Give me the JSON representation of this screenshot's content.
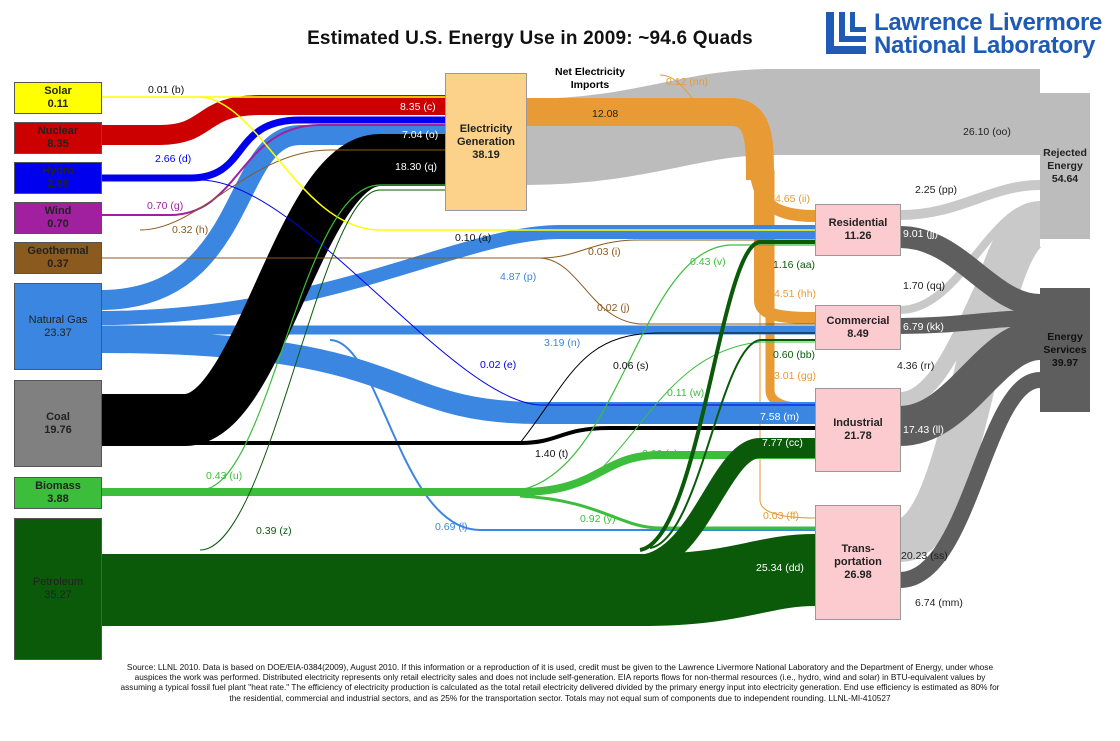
{
  "title": "Estimated U.S. Energy Use in 2009: ~94.6 Quads",
  "logo": {
    "line1": "Lawrence Livermore",
    "line2": "National Laboratory"
  },
  "colors": {
    "solar": "#ffff00",
    "nuclear": "#cc0000",
    "hydro": "#0000ee",
    "wind": "#a020a0",
    "geothermal": "#8b5a1e",
    "gas": "#3a86e0",
    "coal": "#000000",
    "biomass": "#3cbe3c",
    "petroleum": "#0a5a0a",
    "electricity": "#e89a35",
    "rejected": "#bcbcbc",
    "services": "#5e5e5e"
  },
  "sources": [
    {
      "id": "solar",
      "name": "Solar",
      "value": "0.11"
    },
    {
      "id": "nuclear",
      "name": "Nuclear",
      "value": "8.35"
    },
    {
      "id": "hydro",
      "name": "Hydro",
      "value": "2.68"
    },
    {
      "id": "wind",
      "name": "Wind",
      "value": "0.70"
    },
    {
      "id": "geothermal",
      "name": "Geothermal",
      "value": "0.37"
    },
    {
      "id": "gas",
      "name": "Natural Gas",
      "value": "23.37"
    },
    {
      "id": "coal",
      "name": "Coal",
      "value": "19.76"
    },
    {
      "id": "biomass",
      "name": "Biomass",
      "value": "3.88"
    },
    {
      "id": "petroleum",
      "name": "Petroleum",
      "value": "35.27"
    }
  ],
  "electricity": {
    "name": "Electricity Generation",
    "value": "38.19"
  },
  "net_imports": "Net Electricity Imports",
  "sectors": [
    {
      "id": "residential",
      "name": "Residential",
      "value": "11.26"
    },
    {
      "id": "commercial",
      "name": "Commercial",
      "value": "8.49"
    },
    {
      "id": "industrial",
      "name": "Industrial",
      "value": "21.78"
    },
    {
      "id": "transportation",
      "name": "Trans- portation",
      "value": "26.98"
    }
  ],
  "rejected": {
    "name": "Rejected Energy",
    "value": "54.64"
  },
  "services": {
    "name": "Energy Services",
    "value": "39.97"
  },
  "flows": {
    "b": "0.01 (b)",
    "c": "8.35 (c)",
    "o": "7.04 (o)",
    "q": "18.30 (q)",
    "d": "2.66 (d)",
    "g": "0.70 (g)",
    "h": "0.32 (h)",
    "a": "0.10 (a)",
    "i": "0.03 (i)",
    "j": "0.02 (j)",
    "p": "4.87 (p)",
    "n": "3.19 (n)",
    "e": "0.02 (e)",
    "s": "0.06 (s)",
    "t": "1.40 (t)",
    "u": "0.43 (u)",
    "z": "0.39 (z)",
    "l": "0.69 (l)",
    "v": "0.43 (v)",
    "w": "0.11 (w)",
    "x": "2.00 (x)",
    "y": "0.92 (y)",
    "aa": "1.16 (aa)",
    "bb": "0.60 (bb)",
    "cc": "7.77 (cc)",
    "dd": "25.34 (dd)",
    "m": "7.58 (m)",
    "nn": "0.12 (nn)",
    "elec": "12.08",
    "oo": "26.10 (oo)",
    "ii": "4.65 (ii)",
    "hh": "4.51 (hh)",
    "gg": "3.01 (gg)",
    "ff": "0.03 (ff)",
    "pp": "2.25 (pp)",
    "jj": "9.01 (jj)",
    "qq": "1.70 (qq)",
    "kk": "6.79 (kk)",
    "rr": "4.36 (rr)",
    "ll": "17.43 (ll)",
    "ss": "20.23 (ss)",
    "mm": "6.74 (mm)"
  },
  "footnote": "Source: LLNL 2010. Data is based on DOE/EIA-0384(2009), August 2010. If this information or a reproduction of it is used, credit must be given to the Lawrence Livermore National Laboratory and the Department of Energy, under whose auspices the work was performed. Distributed electricity represents only retail electricity sales and does not include self-generation. EIA reports flows for non-thermal resources (i.e., hydro, wind and solar) in BTU-equivalent values by assuming a typical fossil fuel plant \"heat rate.\" The efficiency of electricity production is calculated as the total retail electricity delivered divided by the primary energy input into electricity generation. End use efficiency is estimated as 80% for the residential, commercial and industrial sectors, and as 25% for the transportation sector. Totals may not equal sum of components due to independent rounding. LLNL-MI-410527"
}
